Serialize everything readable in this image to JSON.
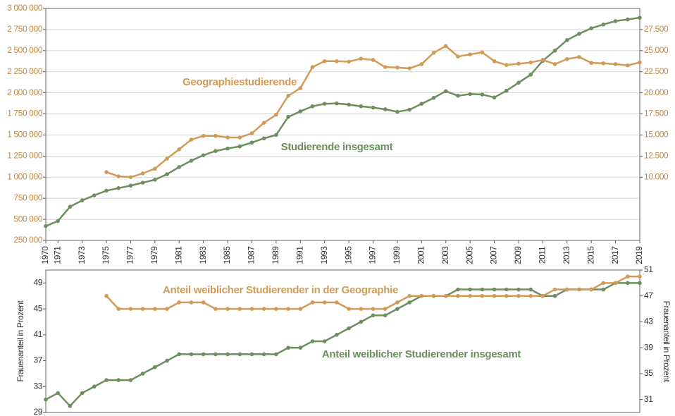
{
  "chart_data": [
    {
      "type": "line",
      "x": [
        1970,
        1971,
        1972,
        1973,
        1974,
        1975,
        1976,
        1977,
        1978,
        1979,
        1980,
        1981,
        1982,
        1983,
        1984,
        1985,
        1986,
        1987,
        1988,
        1989,
        1990,
        1991,
        1992,
        1993,
        1994,
        1995,
        1996,
        1997,
        1998,
        1999,
        2000,
        2001,
        2002,
        2003,
        2004,
        2005,
        2006,
        2007,
        2008,
        2009,
        2010,
        2011,
        2012,
        2013,
        2014,
        2015,
        2016,
        2017,
        2018,
        2019
      ],
      "xlim": [
        1970,
        2019
      ],
      "xticks": [
        1970,
        1971,
        1973,
        1975,
        1977,
        1979,
        1981,
        1983,
        1985,
        1987,
        1989,
        1991,
        1993,
        1995,
        1997,
        1999,
        2001,
        2003,
        2005,
        2007,
        2009,
        2011,
        2013,
        2015,
        2017,
        2019
      ],
      "ylim": [
        250000,
        3000000
      ],
      "yticks": [
        {
          "value": 250000,
          "label": "250 000"
        },
        {
          "value": 500000,
          "label": "500 000"
        },
        {
          "value": 750000,
          "label": "750 000"
        },
        {
          "value": 1000000,
          "label": "1 000 000"
        },
        {
          "value": 1250000,
          "label": "1 250 000"
        },
        {
          "value": 1500000,
          "label": "1 500 000"
        },
        {
          "value": 1750000,
          "label": "1 750 000"
        },
        {
          "value": 2000000,
          "label": "2 000 000"
        },
        {
          "value": 2250000,
          "label": "2 250 000"
        },
        {
          "value": 2500000,
          "label": "2 500 000"
        },
        {
          "value": 2750000,
          "label": "2 750 000"
        },
        {
          "value": 3000000,
          "label": "3 000 000"
        }
      ],
      "y2lim": [
        2500,
        30000
      ],
      "y2ticks": [
        {
          "value": 10000,
          "label": "10.000"
        },
        {
          "value": 12500,
          "label": "12.500"
        },
        {
          "value": 15000,
          "label": "15.000"
        },
        {
          "value": 17500,
          "label": "17.500"
        },
        {
          "value": 20000,
          "label": "20.000"
        },
        {
          "value": 22500,
          "label": "22.500"
        },
        {
          "value": 25000,
          "label": "25.000"
        },
        {
          "value": 27500,
          "label": "27.500"
        }
      ],
      "grid": true,
      "series": [
        {
          "name": "Studierende insgesamt",
          "color": "#6b8f5e",
          "values": [
            420000,
            480000,
            650000,
            725000,
            785000,
            840000,
            870000,
            900000,
            935000,
            970000,
            1035000,
            1120000,
            1195000,
            1260000,
            1310000,
            1340000,
            1365000,
            1410000,
            1460000,
            1500000,
            1715000,
            1780000,
            1840000,
            1870000,
            1875000,
            1860000,
            1840000,
            1825000,
            1805000,
            1775000,
            1800000,
            1870000,
            1940000,
            2020000,
            1965000,
            1985000,
            1980000,
            1945000,
            2025000,
            2120000,
            2215000,
            2380000,
            2500000,
            2625000,
            2700000,
            2765000,
            2810000,
            2850000,
            2870000,
            2890000
          ]
        },
        {
          "name": "Geographiestudierende",
          "color": "#d19b57",
          "axis": "y2",
          "values": [
            null,
            null,
            null,
            null,
            null,
            10600,
            10100,
            10000,
            10450,
            11000,
            12200,
            13300,
            14450,
            14900,
            14900,
            14700,
            14700,
            15200,
            16450,
            17400,
            19650,
            20550,
            23050,
            23750,
            23750,
            23700,
            24050,
            23900,
            23050,
            23000,
            22900,
            23400,
            24750,
            25550,
            24300,
            24550,
            24800,
            23750,
            23300,
            23450,
            23600,
            23900,
            23400,
            24000,
            24250,
            23550,
            23500,
            23400,
            23250,
            23600
          ]
        }
      ]
    },
    {
      "type": "line",
      "x": [
        1970,
        1971,
        1972,
        1973,
        1974,
        1975,
        1976,
        1977,
        1978,
        1979,
        1980,
        1981,
        1982,
        1983,
        1984,
        1985,
        1986,
        1987,
        1988,
        1989,
        1990,
        1991,
        1992,
        1993,
        1994,
        1995,
        1996,
        1997,
        1998,
        1999,
        2000,
        2001,
        2002,
        2003,
        2004,
        2005,
        2006,
        2007,
        2008,
        2009,
        2010,
        2011,
        2012,
        2013,
        2014,
        2015,
        2016,
        2017,
        2018,
        2019
      ],
      "xlim": [
        1970,
        2019
      ],
      "ylim": [
        29,
        51
      ],
      "yticks": [
        29,
        33,
        37,
        41,
        45,
        49
      ],
      "y2lim": [
        29,
        51
      ],
      "y2ticks": [
        31,
        35,
        39,
        43,
        47,
        51
      ],
      "y_label": "Frauenanteil in Prozent",
      "y2_label": "Frauenanteil in Prozent",
      "grid": false,
      "series": [
        {
          "name": "Anteil weiblicher Studierender insgesamt",
          "color": "#6b8f5e",
          "values": [
            31,
            32,
            30,
            32,
            33,
            34,
            34,
            34,
            35,
            36,
            37,
            38,
            38,
            38,
            38,
            38,
            38,
            38,
            38,
            38,
            39,
            39,
            40,
            40,
            41,
            42,
            43,
            44,
            44,
            45,
            46,
            47,
            47,
            47,
            48,
            48,
            48,
            48,
            48,
            48,
            48,
            47,
            47,
            48,
            48,
            48,
            48,
            49,
            49,
            49
          ]
        },
        {
          "name": "Anteil weiblicher Studierender in der Geographie",
          "color": "#d19b57",
          "axis": "y2",
          "values": [
            null,
            null,
            null,
            null,
            null,
            47,
            45,
            45,
            45,
            45,
            45,
            46,
            46,
            46,
            45,
            45,
            45,
            45,
            45,
            45,
            45,
            45,
            46,
            46,
            46,
            45,
            45,
            45,
            45,
            46,
            47,
            47,
            47,
            47,
            47,
            47,
            47,
            47,
            47,
            47,
            47,
            47,
            48,
            48,
            48,
            48,
            49,
            49,
            50,
            50
          ]
        }
      ]
    }
  ]
}
